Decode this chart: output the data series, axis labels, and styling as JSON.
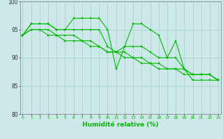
{
  "title": "",
  "xlabel": "Humidité relative (%)",
  "ylabel": "",
  "background_color": "#cce8e8",
  "grid_color": "#aacece",
  "line_color": "#00bb00",
  "x_values": [
    0,
    1,
    2,
    3,
    4,
    5,
    6,
    7,
    8,
    9,
    10,
    11,
    12,
    13,
    14,
    15,
    16,
    17,
    18,
    19,
    20,
    21,
    22,
    23
  ],
  "series1": [
    94,
    96,
    96,
    96,
    95,
    95,
    97,
    97,
    97,
    97,
    95,
    88,
    92,
    96,
    96,
    95,
    94,
    90,
    93,
    88,
    86,
    86,
    86,
    86
  ],
  "series2": [
    94,
    96,
    96,
    96,
    95,
    95,
    95,
    95,
    95,
    95,
    92,
    91,
    92,
    92,
    92,
    91,
    90,
    90,
    90,
    88,
    87,
    87,
    87,
    86
  ],
  "series3": [
    94,
    95,
    95,
    95,
    94,
    94,
    94,
    93,
    93,
    92,
    91,
    91,
    91,
    90,
    90,
    89,
    89,
    88,
    88,
    88,
    87,
    87,
    87,
    86
  ],
  "series4": [
    94,
    95,
    95,
    94,
    94,
    93,
    93,
    93,
    92,
    92,
    91,
    91,
    90,
    90,
    89,
    89,
    88,
    88,
    88,
    87,
    87,
    87,
    87,
    86
  ],
  "ylim": [
    80,
    100
  ],
  "yticks": [
    80,
    85,
    90,
    95,
    100
  ],
  "xtick_fontsize": 4.5,
  "ytick_fontsize": 5.5,
  "xlabel_fontsize": 6.5,
  "marker_size": 2.0,
  "linewidth": 0.8
}
